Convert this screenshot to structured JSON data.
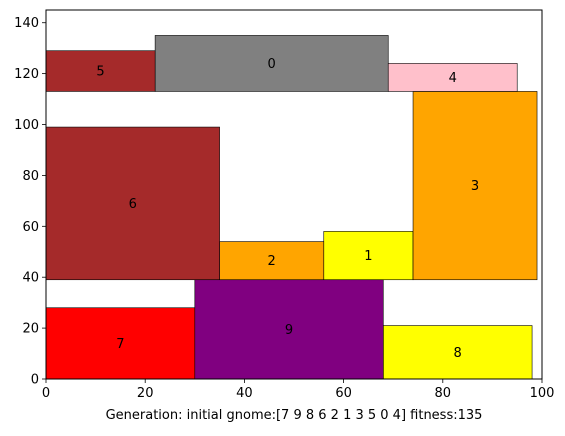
{
  "chart_data": {
    "type": "bar",
    "title": "",
    "xlabel": "Generation: initial gnome:[7 9 8 6 2 1 3 5 0 4] fitness:135",
    "ylabel": "",
    "xlim": [
      0,
      100
    ],
    "ylim": [
      0,
      145
    ],
    "x_ticks": [
      0,
      20,
      40,
      60,
      80,
      100
    ],
    "y_ticks": [
      0,
      20,
      40,
      60,
      80,
      100,
      120,
      140
    ],
    "grid": false,
    "rectangles": [
      {
        "label": "0",
        "x": 22,
        "y": 113,
        "width": 47,
        "height": 22,
        "color": "#808080"
      },
      {
        "label": "1",
        "x": 56,
        "y": 39,
        "width": 18,
        "height": 19,
        "color": "#ffff00"
      },
      {
        "label": "2",
        "x": 35,
        "y": 39,
        "width": 21,
        "height": 15,
        "color": "#ffa500"
      },
      {
        "label": "3",
        "x": 74,
        "y": 39,
        "width": 25,
        "height": 74,
        "color": "#ffa500"
      },
      {
        "label": "4",
        "x": 69,
        "y": 113,
        "width": 26,
        "height": 11,
        "color": "#ffc0cb"
      },
      {
        "label": "5",
        "x": 0,
        "y": 113,
        "width": 22,
        "height": 16,
        "color": "#a52a2a"
      },
      {
        "label": "6",
        "x": 0,
        "y": 39,
        "width": 35,
        "height": 60,
        "color": "#a52a2a"
      },
      {
        "label": "7",
        "x": 0,
        "y": 0,
        "width": 30,
        "height": 28,
        "color": "#ff0000"
      },
      {
        "label": "8",
        "x": 68,
        "y": 0,
        "width": 30,
        "height": 21,
        "color": "#ffff00"
      },
      {
        "label": "9",
        "x": 30,
        "y": 0,
        "width": 38,
        "height": 39,
        "color": "#800080"
      }
    ]
  }
}
